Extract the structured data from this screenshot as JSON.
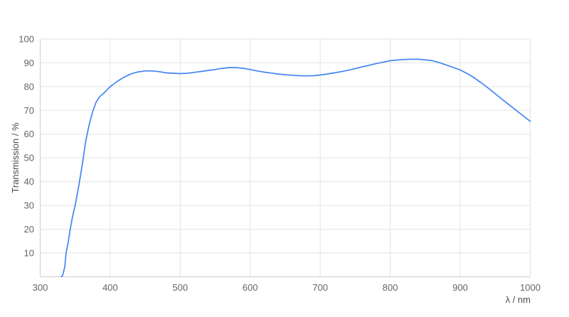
{
  "page": {
    "background_color": "#ffffff"
  },
  "chart_data": {
    "type": "line",
    "title": "",
    "xlabel": "λ / nm",
    "ylabel": "Transmission / %",
    "xlim": [
      300,
      1000
    ],
    "ylim": [
      0,
      100
    ],
    "x_ticks": [
      300,
      400,
      500,
      600,
      700,
      800,
      900,
      1000
    ],
    "y_ticks": [
      10,
      20,
      30,
      40,
      50,
      60,
      70,
      80,
      90,
      100
    ],
    "grid": true,
    "legend_position": "none",
    "series": [
      {
        "name": "Transmission",
        "color": "#4285f4",
        "points": [
          [
            330,
            0
          ],
          [
            332,
            0.5
          ],
          [
            335,
            4
          ],
          [
            337,
            10
          ],
          [
            340,
            14.5
          ],
          [
            343,
            20
          ],
          [
            346,
            25
          ],
          [
            350,
            30
          ],
          [
            355,
            38
          ],
          [
            360,
            47
          ],
          [
            365,
            57
          ],
          [
            370,
            64
          ],
          [
            375,
            69.5
          ],
          [
            380,
            73.5
          ],
          [
            385,
            75.8
          ],
          [
            390,
            77
          ],
          [
            395,
            78.5
          ],
          [
            400,
            80
          ],
          [
            410,
            82.2
          ],
          [
            420,
            84
          ],
          [
            430,
            85.4
          ],
          [
            440,
            86.2
          ],
          [
            450,
            86.6
          ],
          [
            460,
            86.6
          ],
          [
            470,
            86.3
          ],
          [
            480,
            85.8
          ],
          [
            490,
            85.6
          ],
          [
            500,
            85.5
          ],
          [
            510,
            85.6
          ],
          [
            520,
            86
          ],
          [
            530,
            86.4
          ],
          [
            540,
            86.8
          ],
          [
            550,
            87.2
          ],
          [
            560,
            87.7
          ],
          [
            570,
            88
          ],
          [
            580,
            88
          ],
          [
            590,
            87.7
          ],
          [
            600,
            87.2
          ],
          [
            610,
            86.6
          ],
          [
            620,
            86.1
          ],
          [
            630,
            85.7
          ],
          [
            640,
            85.3
          ],
          [
            650,
            85
          ],
          [
            660,
            84.8
          ],
          [
            670,
            84.6
          ],
          [
            680,
            84.5
          ],
          [
            690,
            84.6
          ],
          [
            700,
            84.9
          ],
          [
            710,
            85.3
          ],
          [
            720,
            85.8
          ],
          [
            730,
            86.3
          ],
          [
            740,
            86.9
          ],
          [
            750,
            87.6
          ],
          [
            760,
            88.3
          ],
          [
            770,
            89
          ],
          [
            780,
            89.7
          ],
          [
            790,
            90.3
          ],
          [
            800,
            90.9
          ],
          [
            810,
            91.2
          ],
          [
            820,
            91.4
          ],
          [
            830,
            91.5
          ],
          [
            840,
            91.5
          ],
          [
            850,
            91.3
          ],
          [
            860,
            90.9
          ],
          [
            870,
            90.1
          ],
          [
            880,
            89.1
          ],
          [
            890,
            88.1
          ],
          [
            900,
            87
          ],
          [
            910,
            85.5
          ],
          [
            920,
            83.7
          ],
          [
            930,
            81.6
          ],
          [
            940,
            79.4
          ],
          [
            950,
            77
          ],
          [
            960,
            74.6
          ],
          [
            970,
            72.3
          ],
          [
            980,
            70
          ],
          [
            990,
            67.7
          ],
          [
            1000,
            65.4
          ]
        ]
      }
    ],
    "colors": {
      "line": "#4285f4",
      "grid": "#e3e3e3",
      "axis_line": "#cccccc",
      "tick_label": "#646464",
      "axis_title": "#4d4d4d"
    }
  }
}
